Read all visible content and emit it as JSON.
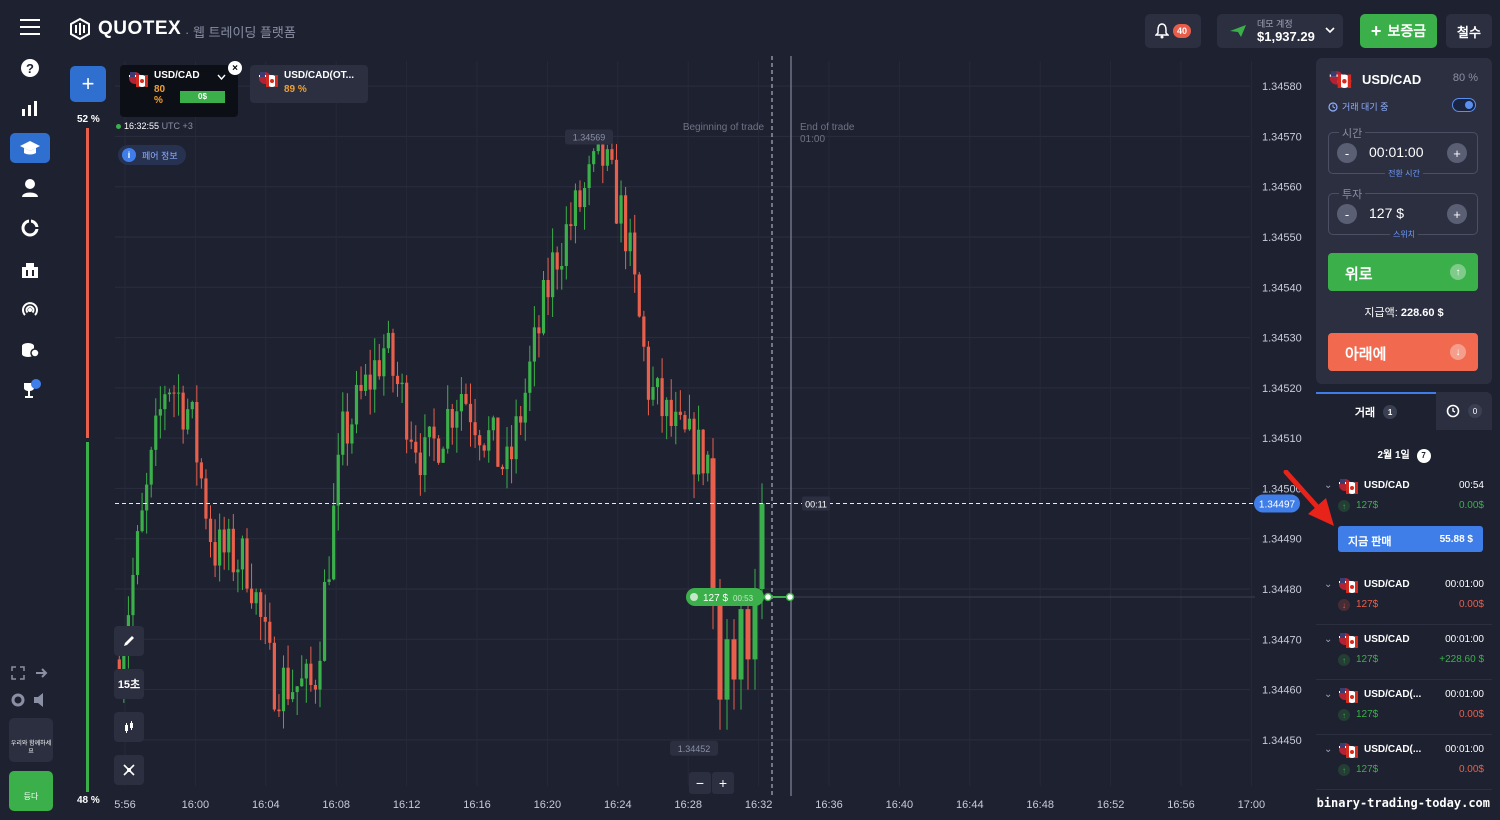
{
  "header": {
    "logo": "QUOTEX",
    "subtitle": "웹 트레이딩 플랫폼",
    "notifications": "40",
    "account_label": "데모 계정",
    "balance": "$1,937.29",
    "deposit": "보증금",
    "withdraw": "철수"
  },
  "tabs": [
    {
      "name": "USD/CAD",
      "pct": "80",
      "pct_suffix": "%",
      "chip": "0$"
    },
    {
      "name": "USD/CAD(OT...",
      "pct": "89 %"
    }
  ],
  "chart": {
    "pct_up": "52 %",
    "pct_down": "48 %",
    "time": "16:32:55",
    "tz": "UTC +3",
    "pair_info": "페어 정보",
    "begin": "Beginning of trade",
    "end": "End of trade",
    "end_time": "01:00",
    "high_label": "1.34569",
    "low_label": "1.34452",
    "countdown": "00:11",
    "current_price": "1.34497",
    "bet_amount": "127 $",
    "bet_timer": "00:53",
    "timeframe": "15초",
    "zoom_out": "−",
    "zoom_in": "+",
    "support": "우리와 함께하세요",
    "demo": "등다"
  },
  "chart_data": {
    "type": "candlestick",
    "price_ticks": [
      "1.34580",
      "1.34570",
      "1.34560",
      "1.34550",
      "1.34540",
      "1.34530",
      "1.34520",
      "1.34510",
      "1.34500",
      "1.34490",
      "1.34480",
      "1.34470",
      "1.34460",
      "1.34450"
    ],
    "time_ticks": [
      "5:56",
      "16:00",
      "16:04",
      "16:08",
      "16:12",
      "16:16",
      "16:20",
      "16:24",
      "16:28",
      "16:32",
      "16:36",
      "16:40",
      "16:44",
      "16:48",
      "16:52",
      "16:56",
      "17:00"
    ],
    "ylim": [
      1.34445,
      1.34585
    ],
    "last_price": 1.34497,
    "high": 1.34569,
    "low": 1.34452,
    "colors": {
      "up": "#3bb04a",
      "down": "#e8604c"
    }
  },
  "panel": {
    "asset": "USD/CAD",
    "pct": "80 %",
    "wait": "거래 대기 중",
    "time_label": "시간",
    "time_value": "00:01:00",
    "time_sub": "전환 시간",
    "invest_label": "투자",
    "invest_value": "127 $",
    "invest_sub": "스위치",
    "up": "위로",
    "payout_label": "지급액:",
    "payout_value": "228.60 $",
    "down": "아래에",
    "minus": "-",
    "plus": "+"
  },
  "trades": {
    "tab_trades": "거래",
    "tab_trades_count": "1",
    "tab_history_count": "0",
    "date": "2월 1일",
    "date_count": "7",
    "sell_now": "지금 판매",
    "sell_value": "55.88 $",
    "items": [
      {
        "name": "USD/CAD",
        "time": "00:54",
        "amount": "127$",
        "result": "0.00$",
        "dir": "up",
        "res_color": "#3bb04a"
      },
      {
        "name": "USD/CAD",
        "time": "00:01:00",
        "amount": "127$",
        "result": "0.00$",
        "dir": "down",
        "res_color": "#e8604c"
      },
      {
        "name": "USD/CAD",
        "time": "00:01:00",
        "amount": "127$",
        "result": "+228.60 $",
        "dir": "up",
        "res_color": "#3bb04a"
      },
      {
        "name": "USD/CAD(...",
        "time": "00:01:00",
        "amount": "127$",
        "result": "0.00$",
        "dir": "up",
        "res_color": "#e8604c"
      },
      {
        "name": "USD/CAD(...",
        "time": "00:01:00",
        "amount": "127$",
        "result": "0.00$",
        "dir": "up",
        "res_color": "#e8604c"
      }
    ]
  },
  "watermark": "binary-trading-today.com"
}
